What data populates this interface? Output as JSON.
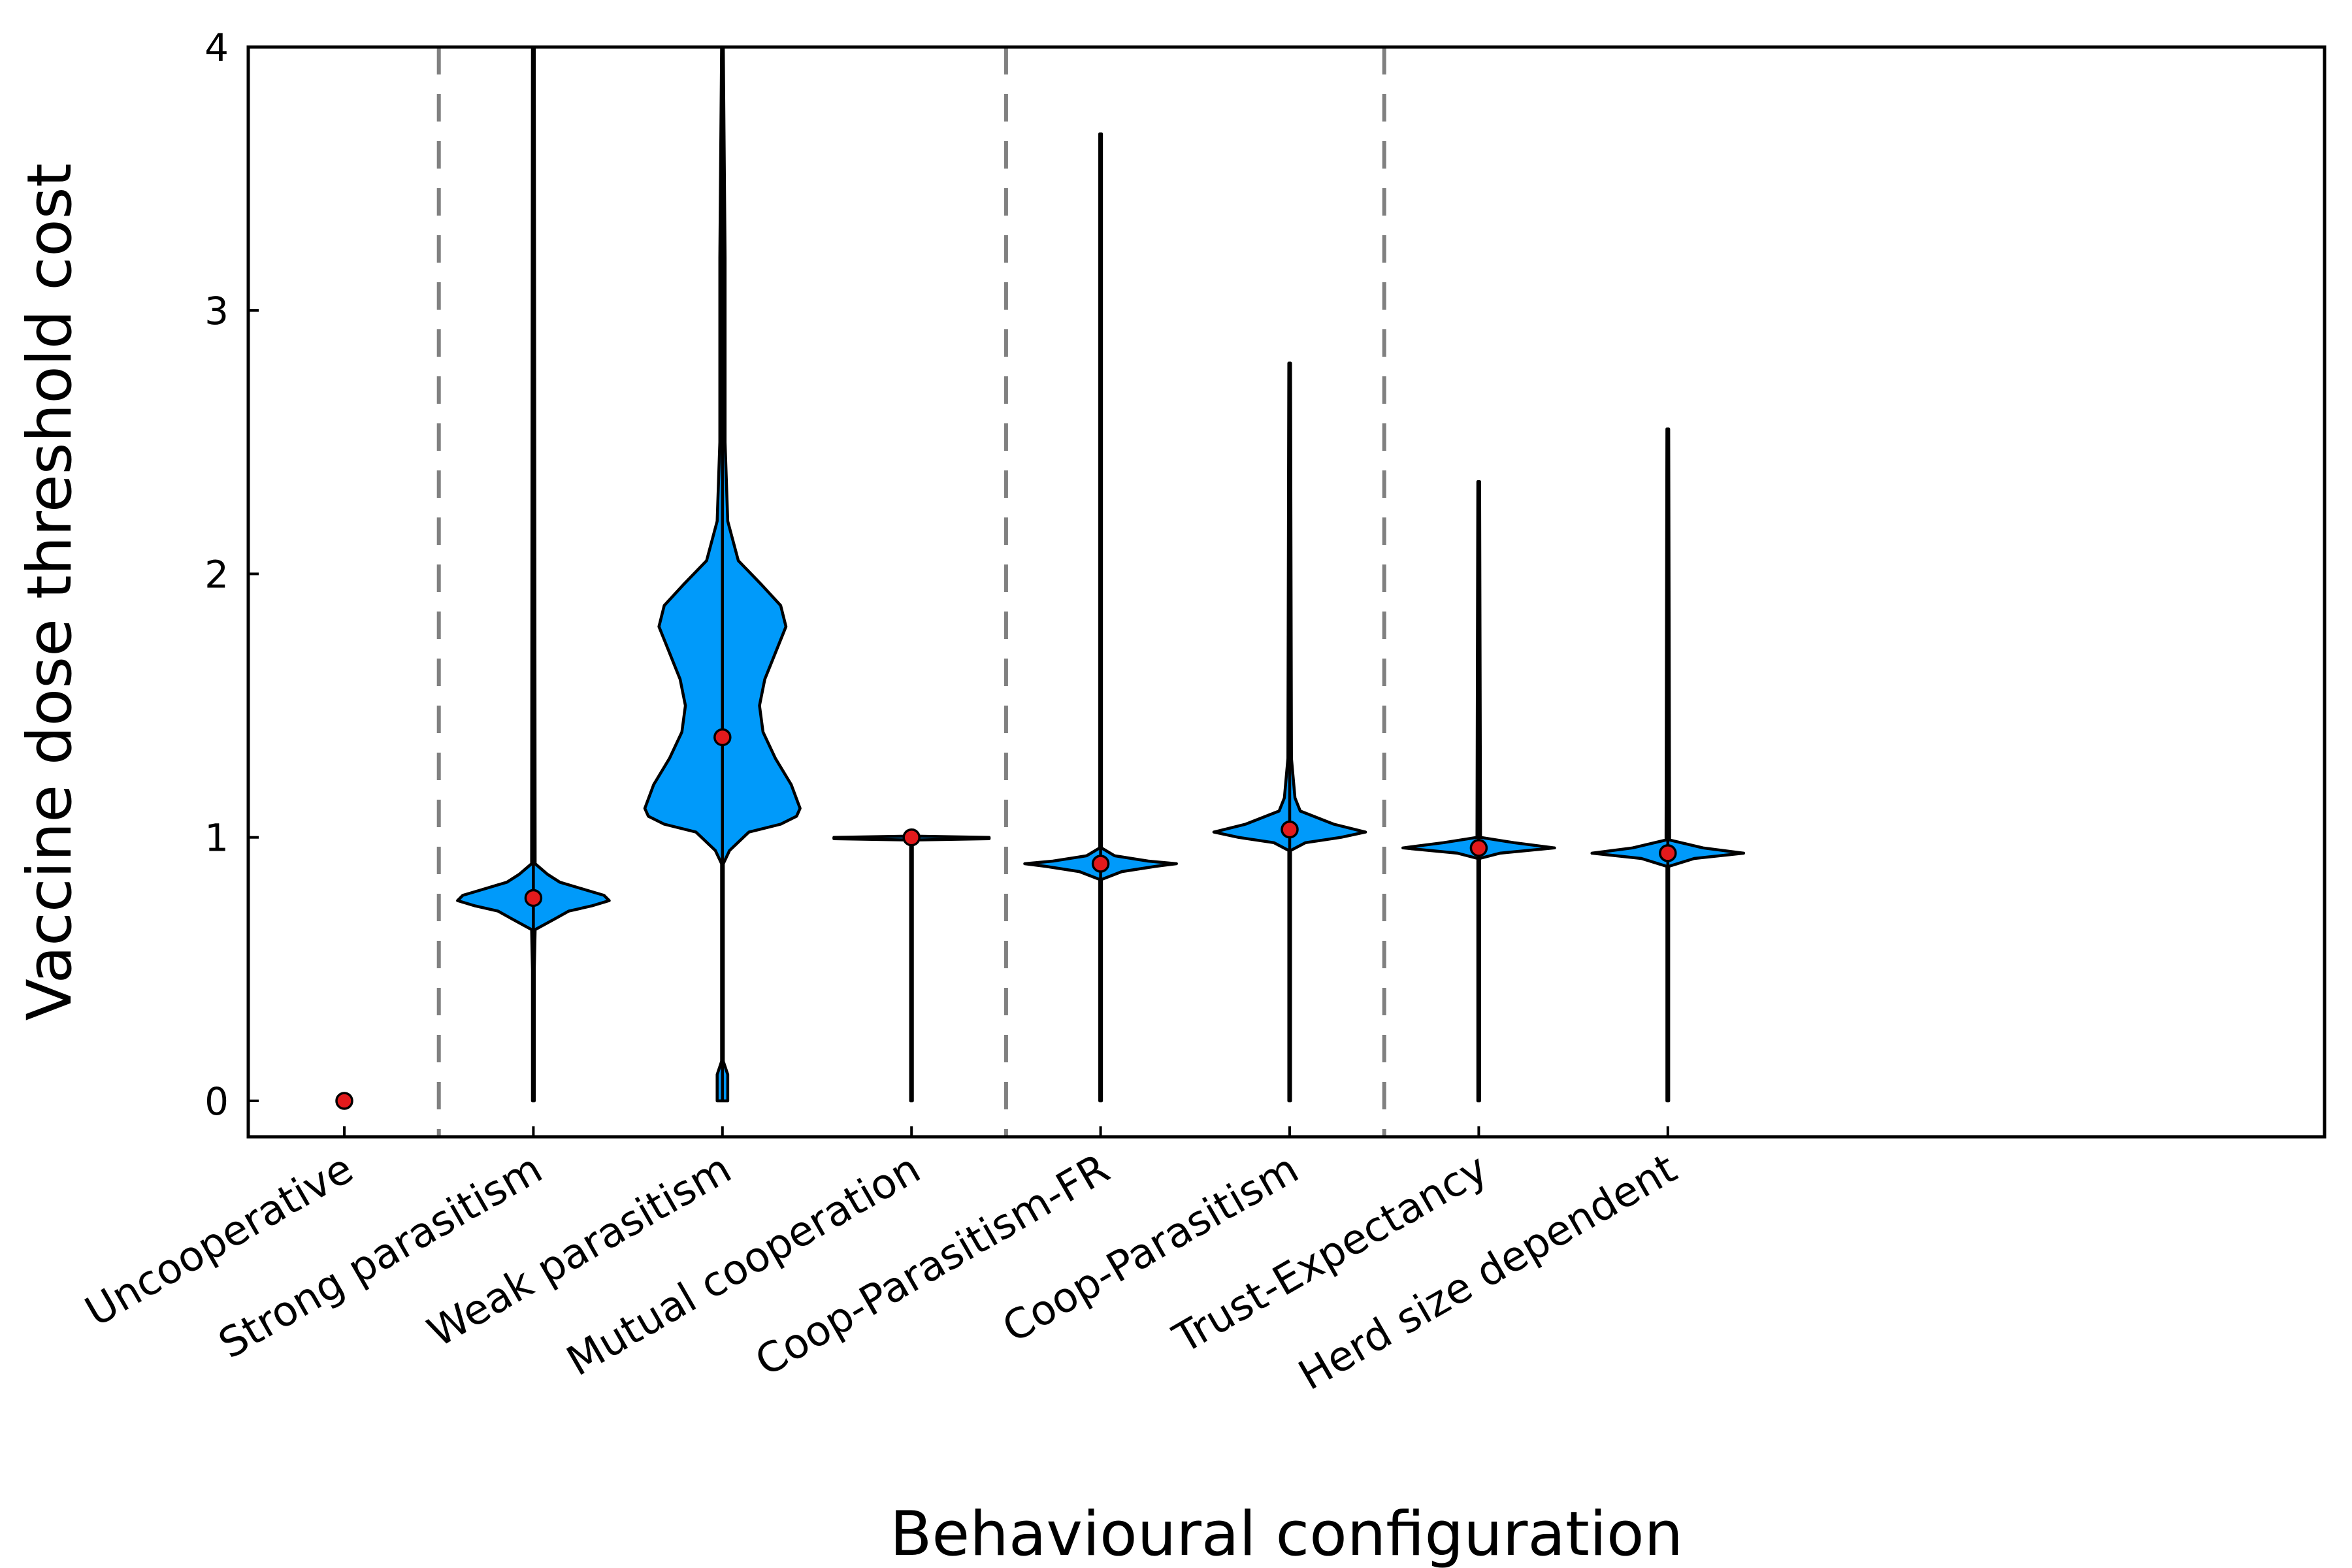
{
  "chart_data": {
    "type": "violin",
    "title": "",
    "xlabel": "Behavioural configuration",
    "ylabel": "Vaccine dose threshold cost",
    "ylim": [
      -0.14,
      4.0
    ],
    "yticks": [
      0,
      1,
      2,
      3,
      4
    ],
    "grid": false,
    "legend": "none",
    "colors": {
      "violin_fill": "#009AFA",
      "mean_marker": "#E31A1C",
      "outline": "#000000",
      "separator": "#808080"
    },
    "group_separators_after_index": [
      0,
      3,
      5
    ],
    "categories": [
      "Uncooperative",
      "Strong parasitism",
      "Weak parasitism",
      "Mutual cooperation",
      "Coop-Parasitism-FR",
      "Coop-Parasitism",
      "Trust-Expectancy",
      "Herd size dependent"
    ],
    "series": [
      {
        "category": "Uncooperative",
        "mean": 0.0,
        "min": 0.0,
        "max": 0.0,
        "profile": [
          [
            0.0,
            0.0
          ]
        ]
      },
      {
        "category": "Strong parasitism",
        "mean": 0.77,
        "min": 0.0,
        "max": 4.0,
        "profile": [
          [
            0.0,
            0.005
          ],
          [
            0.5,
            0.005
          ],
          [
            0.65,
            0.01
          ],
          [
            0.69,
            0.12
          ],
          [
            0.72,
            0.2
          ],
          [
            0.74,
            0.33
          ],
          [
            0.76,
            0.43
          ],
          [
            0.78,
            0.4
          ],
          [
            0.8,
            0.3
          ],
          [
            0.83,
            0.15
          ],
          [
            0.86,
            0.08
          ],
          [
            0.9,
            0.01
          ],
          [
            4.0,
            0.005
          ]
        ]
      },
      {
        "category": "Weak parasitism",
        "mean": 1.38,
        "min": 0.0,
        "max": 4.0,
        "profile": [
          [
            0.0,
            0.03
          ],
          [
            0.1,
            0.03
          ],
          [
            0.15,
            0.005
          ],
          [
            0.9,
            0.005
          ],
          [
            0.95,
            0.04
          ],
          [
            1.02,
            0.15
          ],
          [
            1.05,
            0.33
          ],
          [
            1.08,
            0.42
          ],
          [
            1.11,
            0.44
          ],
          [
            1.2,
            0.39
          ],
          [
            1.3,
            0.3
          ],
          [
            1.4,
            0.23
          ],
          [
            1.5,
            0.21
          ],
          [
            1.6,
            0.24
          ],
          [
            1.7,
            0.3
          ],
          [
            1.8,
            0.36
          ],
          [
            1.88,
            0.33
          ],
          [
            1.96,
            0.22
          ],
          [
            2.05,
            0.09
          ],
          [
            2.2,
            0.03
          ],
          [
            2.5,
            0.015
          ],
          [
            3.2,
            0.015
          ],
          [
            4.0,
            0.005
          ]
        ]
      },
      {
        "category": "Mutual cooperation",
        "mean": 1.0,
        "min": 0.0,
        "max": 1.0,
        "profile": [
          [
            0.0,
            0.005
          ],
          [
            0.99,
            0.005
          ],
          [
            0.995,
            0.44
          ],
          [
            1.0,
            0.44
          ],
          [
            1.005,
            0.005
          ]
        ]
      },
      {
        "category": "Coop-Parasitism-FR",
        "mean": 0.9,
        "min": 0.0,
        "max": 3.67,
        "profile": [
          [
            0.0,
            0.005
          ],
          [
            0.84,
            0.005
          ],
          [
            0.87,
            0.12
          ],
          [
            0.89,
            0.31
          ],
          [
            0.9,
            0.43
          ],
          [
            0.91,
            0.27
          ],
          [
            0.93,
            0.08
          ],
          [
            0.96,
            0.005
          ],
          [
            3.67,
            0.005
          ]
        ]
      },
      {
        "category": "Coop-Parasitism",
        "mean": 1.03,
        "min": 0.0,
        "max": 2.8,
        "profile": [
          [
            0.0,
            0.005
          ],
          [
            0.95,
            0.005
          ],
          [
            0.98,
            0.09
          ],
          [
            1.0,
            0.29
          ],
          [
            1.02,
            0.43
          ],
          [
            1.05,
            0.25
          ],
          [
            1.1,
            0.06
          ],
          [
            1.15,
            0.03
          ],
          [
            1.3,
            0.01
          ],
          [
            2.8,
            0.005
          ]
        ]
      },
      {
        "category": "Trust-Expectancy",
        "mean": 0.96,
        "min": 0.0,
        "max": 2.35,
        "profile": [
          [
            0.0,
            0.005
          ],
          [
            0.92,
            0.005
          ],
          [
            0.94,
            0.12
          ],
          [
            0.96,
            0.43
          ],
          [
            0.98,
            0.2
          ],
          [
            1.0,
            0.01
          ],
          [
            2.35,
            0.005
          ]
        ]
      },
      {
        "category": "Herd size dependent",
        "mean": 0.94,
        "min": 0.0,
        "max": 2.55,
        "profile": [
          [
            0.0,
            0.005
          ],
          [
            0.89,
            0.005
          ],
          [
            0.92,
            0.15
          ],
          [
            0.94,
            0.43
          ],
          [
            0.96,
            0.2
          ],
          [
            0.99,
            0.01
          ],
          [
            2.55,
            0.005
          ]
        ]
      }
    ]
  }
}
